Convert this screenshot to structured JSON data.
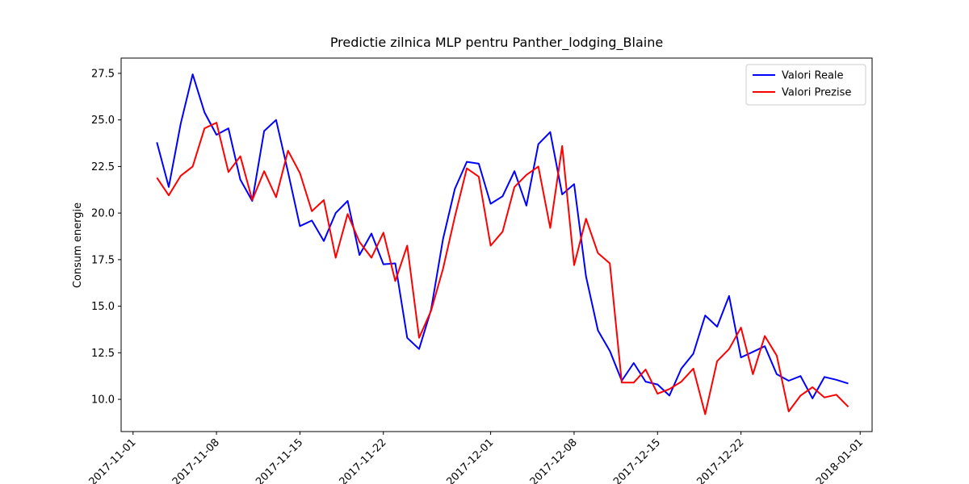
{
  "chart_data": {
    "type": "line",
    "title": "Predictie zilnica MLP pentru Panther_lodging_Blaine",
    "y_label": "Consum energie",
    "x": [
      "2017-11-03",
      "2017-11-04",
      "2017-11-05",
      "2017-11-06",
      "2017-11-07",
      "2017-11-08",
      "2017-11-09",
      "2017-11-10",
      "2017-11-11",
      "2017-11-12",
      "2017-11-13",
      "2017-11-14",
      "2017-11-15",
      "2017-11-16",
      "2017-11-17",
      "2017-11-18",
      "2017-11-19",
      "2017-11-20",
      "2017-11-21",
      "2017-11-22",
      "2017-11-23",
      "2017-11-24",
      "2017-11-25",
      "2017-11-26",
      "2017-11-27",
      "2017-11-28",
      "2017-11-29",
      "2017-11-30",
      "2017-12-01",
      "2017-12-02",
      "2017-12-03",
      "2017-12-04",
      "2017-12-05",
      "2017-12-06",
      "2017-12-07",
      "2017-12-08",
      "2017-12-09",
      "2017-12-10",
      "2017-12-11",
      "2017-12-12",
      "2017-12-13",
      "2017-12-14",
      "2017-12-15",
      "2017-12-16",
      "2017-12-17",
      "2017-12-18",
      "2017-12-19",
      "2017-12-20",
      "2017-12-21",
      "2017-12-22",
      "2017-12-23",
      "2017-12-24",
      "2017-12-25",
      "2017-12-26",
      "2017-12-27",
      "2017-12-28",
      "2017-12-29",
      "2017-12-30",
      "2017-12-31"
    ],
    "series": [
      {
        "name": "Valori Reale",
        "color": "#0000ff",
        "values": [
          23.8,
          21.4,
          24.8,
          27.45,
          25.4,
          24.2,
          24.55,
          21.8,
          20.65,
          24.4,
          25.0,
          22.2,
          19.3,
          19.6,
          18.5,
          20.0,
          20.65,
          17.75,
          18.9,
          17.25,
          17.3,
          13.3,
          12.7,
          14.8,
          18.6,
          21.3,
          22.75,
          22.65,
          20.5,
          20.9,
          22.25,
          20.4,
          23.7,
          24.35,
          21.0,
          21.55,
          16.6,
          13.7,
          12.6,
          11.0,
          11.95,
          10.95,
          10.8,
          10.2,
          11.65,
          12.45,
          14.5,
          13.9,
          15.55,
          12.25,
          12.55,
          12.85,
          11.35,
          11.0,
          11.25,
          10.05,
          11.2,
          11.05,
          10.85
        ]
      },
      {
        "name": "Valori Prezise",
        "color": "#ff0000",
        "values": [
          21.9,
          20.95,
          22.0,
          22.5,
          24.55,
          24.85,
          22.2,
          23.05,
          20.7,
          22.25,
          20.85,
          23.35,
          22.15,
          20.1,
          20.7,
          17.6,
          19.95,
          18.45,
          17.6,
          18.95,
          16.35,
          18.25,
          13.3,
          14.75,
          17.0,
          19.8,
          22.4,
          21.95,
          18.25,
          19.0,
          21.4,
          22.05,
          22.5,
          19.2,
          23.6,
          17.2,
          19.7,
          17.85,
          17.3,
          10.9,
          10.9,
          11.6,
          10.3,
          10.55,
          10.95,
          11.65,
          9.2,
          12.05,
          12.7,
          13.85,
          11.35,
          13.4,
          12.35,
          9.35,
          10.2,
          10.65,
          10.1,
          10.25,
          9.6
        ]
      }
    ],
    "xlim": [
      "2017-10-31",
      "2018-01-02"
    ],
    "xticks": [
      "2017-11-01",
      "2017-11-08",
      "2017-11-15",
      "2017-11-22",
      "2017-12-01",
      "2017-12-08",
      "2017-12-15",
      "2017-12-22",
      "2018-01-01"
    ],
    "ylim": [
      8.27,
      28.32
    ],
    "yticks": [
      {
        "value": 10,
        "label": "10.0"
      },
      {
        "value": 12.5,
        "label": "12.5"
      },
      {
        "value": 15,
        "label": "15.0"
      },
      {
        "value": 17.5,
        "label": "17.5"
      },
      {
        "value": 20,
        "label": "20.0"
      },
      {
        "value": 22.5,
        "label": "22.5"
      },
      {
        "value": 25,
        "label": "25.0"
      },
      {
        "value": 27.5,
        "label": "27.5"
      }
    ],
    "legend": "upper right"
  }
}
